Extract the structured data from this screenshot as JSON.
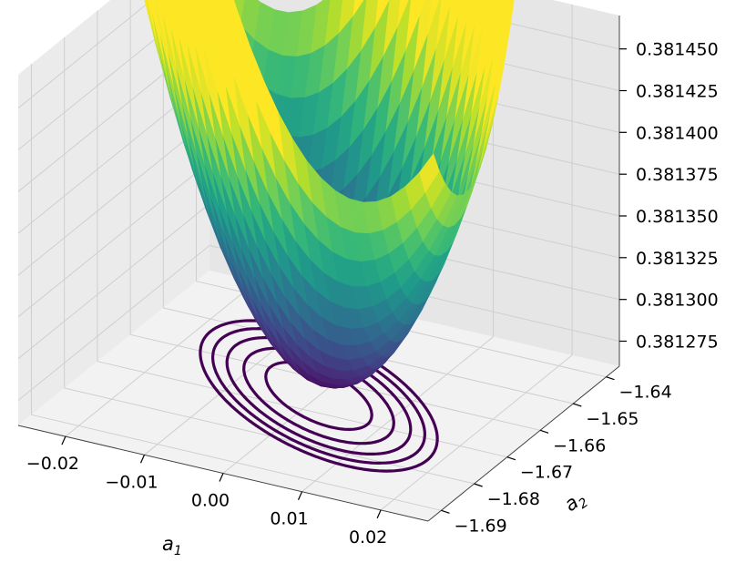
{
  "chart_data": {
    "type": "surface3d",
    "subtype": "surface with projected contour lines on floor",
    "colormap": "viridis",
    "contour_color": "#440154",
    "pane_color": "#f2f2f2",
    "grid_color": "#cfcfcf",
    "x_axis": {
      "label": "a",
      "label_subscript": "1",
      "ticks": [
        "−0.02",
        "−0.01",
        "0.00",
        "0.01",
        "0.02"
      ],
      "tick_values": [
        -0.02,
        -0.01,
        0.0,
        0.01,
        0.02
      ],
      "range": [
        -0.026,
        0.026
      ]
    },
    "y_axis": {
      "label": "a",
      "label_subscript": "2",
      "ticks": [
        "−1.69",
        "−1.68",
        "−1.67",
        "−1.66",
        "−1.65",
        "−1.64"
      ],
      "tick_values": [
        -1.69,
        -1.68,
        -1.67,
        -1.66,
        -1.65,
        -1.64
      ],
      "range": [
        -1.694,
        -1.636
      ]
    },
    "z_axis": {
      "label": "",
      "ticks": [
        "0.381275",
        "0.381300",
        "0.381325",
        "0.381350",
        "0.381375",
        "0.381400",
        "0.381425",
        "0.381450"
      ],
      "tick_values": [
        0.381275,
        0.3813,
        0.381325,
        0.38135,
        0.381375,
        0.3814,
        0.381425,
        0.38145
      ],
      "range": [
        0.38126,
        0.38147
      ]
    },
    "surface": {
      "min_value": 0.38127,
      "max_value": 0.381465,
      "min_location": {
        "a1": 0.0,
        "a2": -1.665
      },
      "shape": "elliptical bowl elongated along a1 = a2 diagonal"
    },
    "contour_levels": 5,
    "grid": true
  }
}
